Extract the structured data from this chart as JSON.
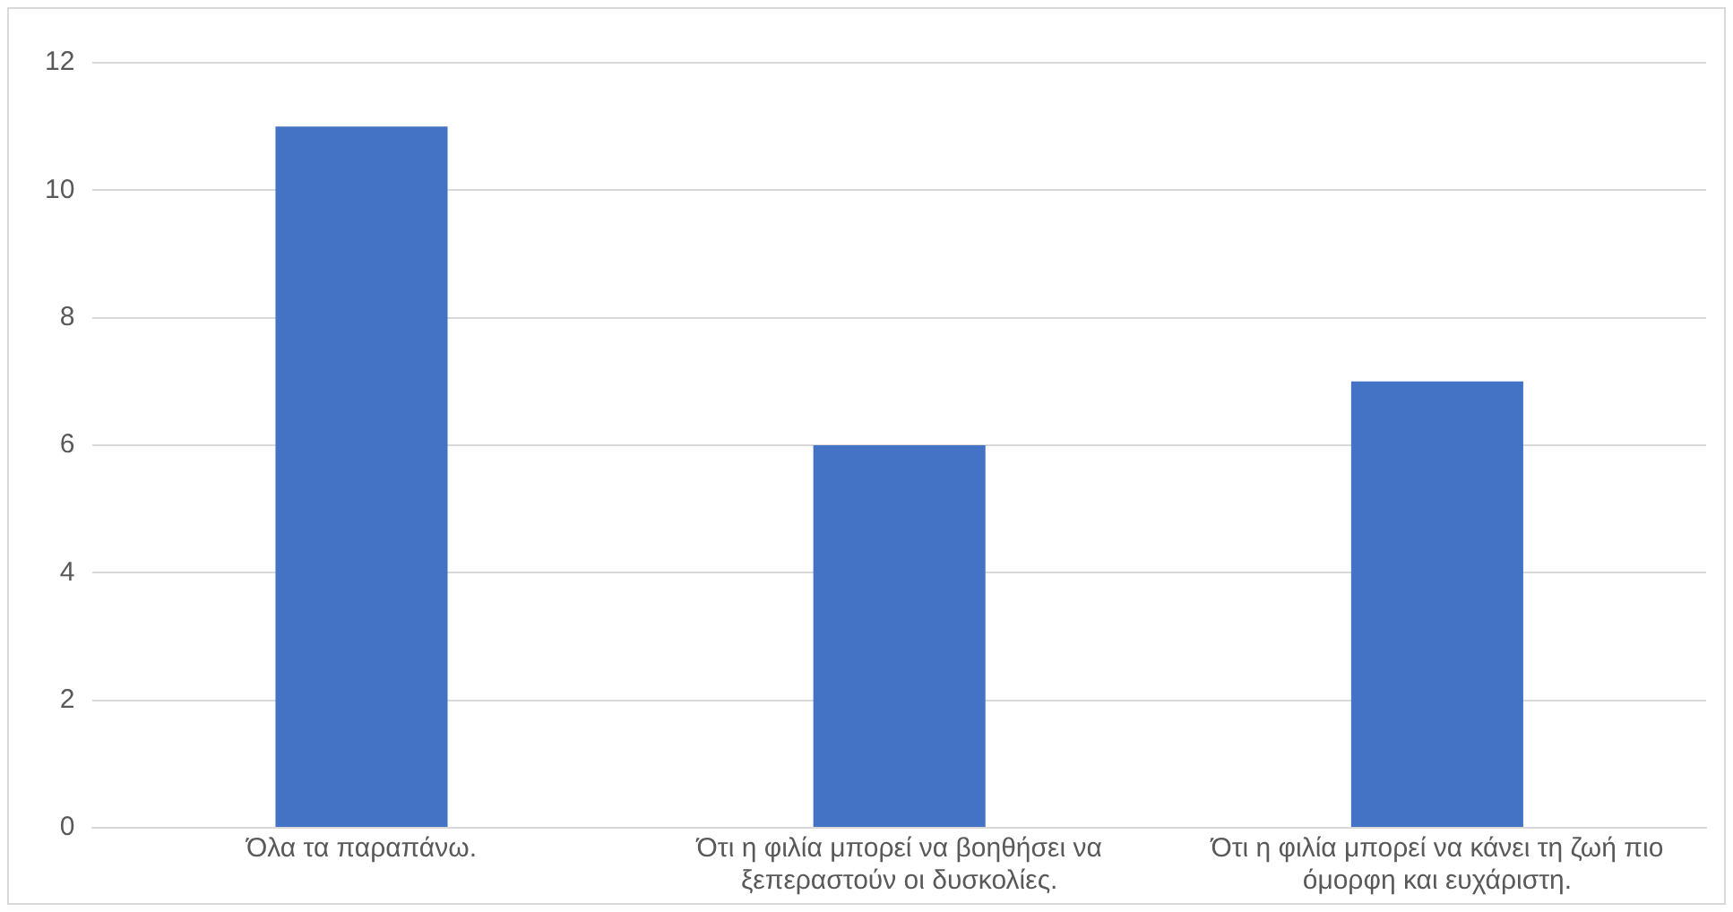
{
  "chart_data": {
    "type": "bar",
    "categories": [
      "Όλα τα παραπάνω.",
      "Ότι η φιλία μπορεί να βοηθήσει να ξεπεραστούν οι δυσκολίες.",
      "Ότι η φιλία μπορεί να κάνει τη ζωή πιο όμορφη και ευχάριστη."
    ],
    "values": [
      11,
      6,
      7
    ],
    "color": "#4472c4",
    "ylim": [
      0,
      12
    ],
    "yticks": [
      0,
      2,
      4,
      6,
      8,
      10,
      12
    ],
    "grid": "y",
    "legend": false
  }
}
